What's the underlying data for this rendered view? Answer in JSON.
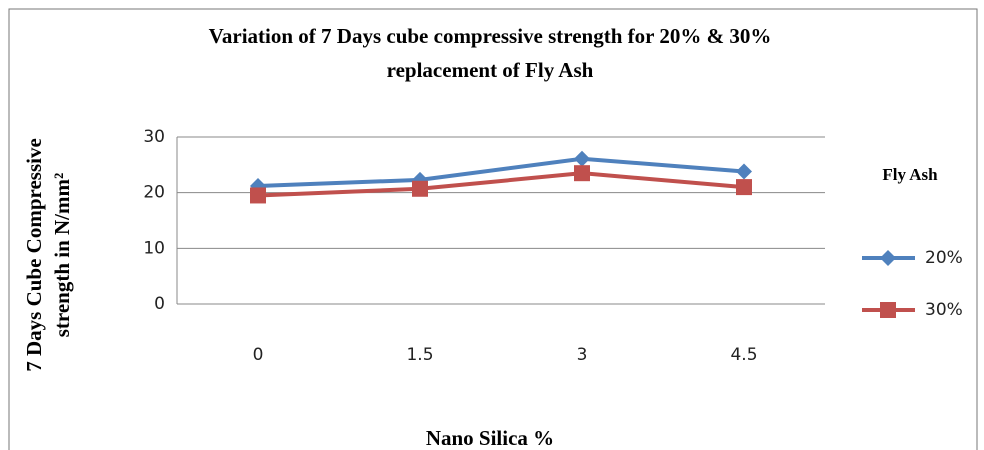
{
  "chart_data": {
    "type": "line",
    "title": [
      "Variation of 7 Days cube compressive strength for 20% & 30%",
      "replacement of Fly Ash"
    ],
    "x_label": "Nano Silica %",
    "y_label": [
      "7 Days Cube Compressive",
      "strength in N/mm²"
    ],
    "legend_title": "Fly Ash",
    "categories": [
      "0",
      "1.5",
      "3",
      "4.5"
    ],
    "series": [
      {
        "name": "20%",
        "color": "#4f81bd",
        "marker": "diamond",
        "values": [
          21.2,
          22.3,
          26.1,
          23.8
        ]
      },
      {
        "name": "30%",
        "color": "#c0504d",
        "marker": "square",
        "values": [
          19.5,
          20.7,
          23.5,
          21.0
        ]
      }
    ],
    "ylim": [
      0,
      30
    ],
    "yticks": [
      0,
      10,
      20,
      30
    ],
    "grid": true,
    "legend": "right"
  }
}
